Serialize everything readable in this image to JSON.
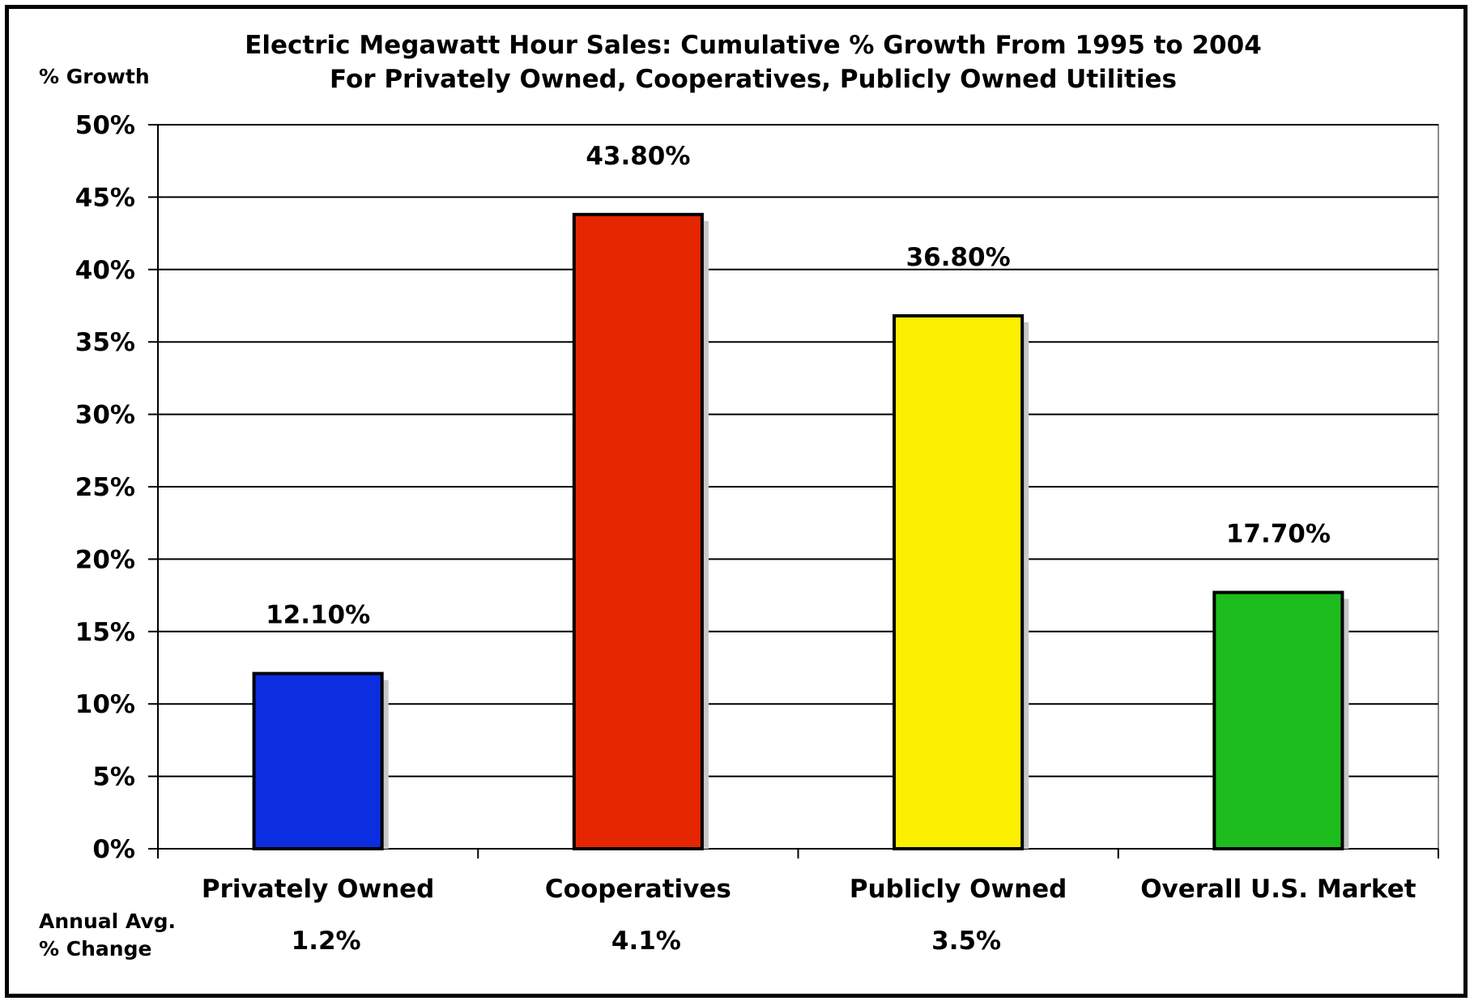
{
  "chart_data": {
    "type": "bar",
    "title_line1": "Electric Megawatt Hour Sales: Cumulative % Growth From 1995 to 2004",
    "title_line2": "For Privately Owned, Cooperatives, Publicly Owned Utilities",
    "ylabel": "% Growth",
    "ylim": [
      0,
      50
    ],
    "yticks": [
      0,
      5,
      10,
      15,
      20,
      25,
      30,
      35,
      40,
      45,
      50
    ],
    "ytick_labels": [
      "0%",
      "5%",
      "10%",
      "15%",
      "20%",
      "25%",
      "30%",
      "35%",
      "40%",
      "45%",
      "50%"
    ],
    "grid": true,
    "categories": [
      "Privately Owned",
      "Cooperatives",
      "Publicly Owned",
      "Overall U.S. Market"
    ],
    "values": [
      12.1,
      43.8,
      36.8,
      17.7
    ],
    "data_labels": [
      "12.10%",
      "43.80%",
      "36.80%",
      "17.70%"
    ],
    "bar_colors": [
      "#0a2ee0",
      "#e62600",
      "#fcf000",
      "#1cbd1c"
    ],
    "annual_label_line1": "Annual Avg.",
    "annual_label_line2": "% Change",
    "annual_values": [
      "1.2%",
      "4.1%",
      "3.5%",
      ""
    ]
  }
}
